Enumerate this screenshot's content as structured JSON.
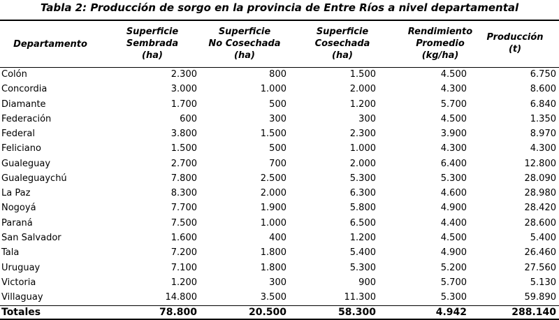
{
  "title": "Tabla 2: Producción de sorgo en la provincia de Entre Ríos a nivel departamental",
  "header": [
    [
      "Departamento"
    ],
    [
      "Superficie",
      "Sembrada",
      "(ha)"
    ],
    [
      "Superficie",
      "No Cosechada",
      "(ha)"
    ],
    [
      "Superficie",
      "Cosechada",
      "(ha)"
    ],
    [
      "Rendimiento",
      "Promedio",
      "(kg/ha)"
    ],
    [
      "Producción",
      "(t)"
    ]
  ],
  "rows": [
    [
      "Colón",
      "2.300",
      "800",
      "1.500",
      "4.500",
      "6.750"
    ],
    [
      "Concordia",
      "3.000",
      "1.000",
      "2.000",
      "4.300",
      "8.600"
    ],
    [
      "Diamante",
      "1.700",
      "500",
      "1.200",
      "5.700",
      "6.840"
    ],
    [
      "Federación",
      "600",
      "300",
      "300",
      "4.500",
      "1.350"
    ],
    [
      "Federal",
      "3.800",
      "1.500",
      "2.300",
      "3.900",
      "8.970"
    ],
    [
      "Feliciano",
      "1.500",
      "500",
      "1.000",
      "4.300",
      "4.300"
    ],
    [
      "Gualeguay",
      "2.700",
      "700",
      "2.000",
      "6.400",
      "12.800"
    ],
    [
      "Gualeguaychú",
      "7.800",
      "2.500",
      "5.300",
      "5.300",
      "28.090"
    ],
    [
      "La Paz",
      "8.300",
      "2.000",
      "6.300",
      "4.600",
      "28.980"
    ],
    [
      "Nogoyá",
      "7.700",
      "1.900",
      "5.800",
      "4.900",
      "28.420"
    ],
    [
      "Paraná",
      "7.500",
      "1.000",
      "6.500",
      "4.400",
      "28.600"
    ],
    [
      "San Salvador",
      "1.600",
      "400",
      "1.200",
      "4.500",
      "5.400"
    ],
    [
      "Tala",
      "7.200",
      "1.800",
      "5.400",
      "4.900",
      "26.460"
    ],
    [
      "Uruguay",
      "7.100",
      "1.800",
      "5.300",
      "5.200",
      "27.560"
    ],
    [
      "Victoria",
      "1.200",
      "300",
      "900",
      "5.700",
      "5.130"
    ],
    [
      "Villaguay",
      "14.800",
      "3.500",
      "11.300",
      "5.300",
      "59.890"
    ]
  ],
  "totals": [
    "Totales",
    "78.800",
    "20.500",
    "58.300",
    "4.942",
    "288.140"
  ]
}
